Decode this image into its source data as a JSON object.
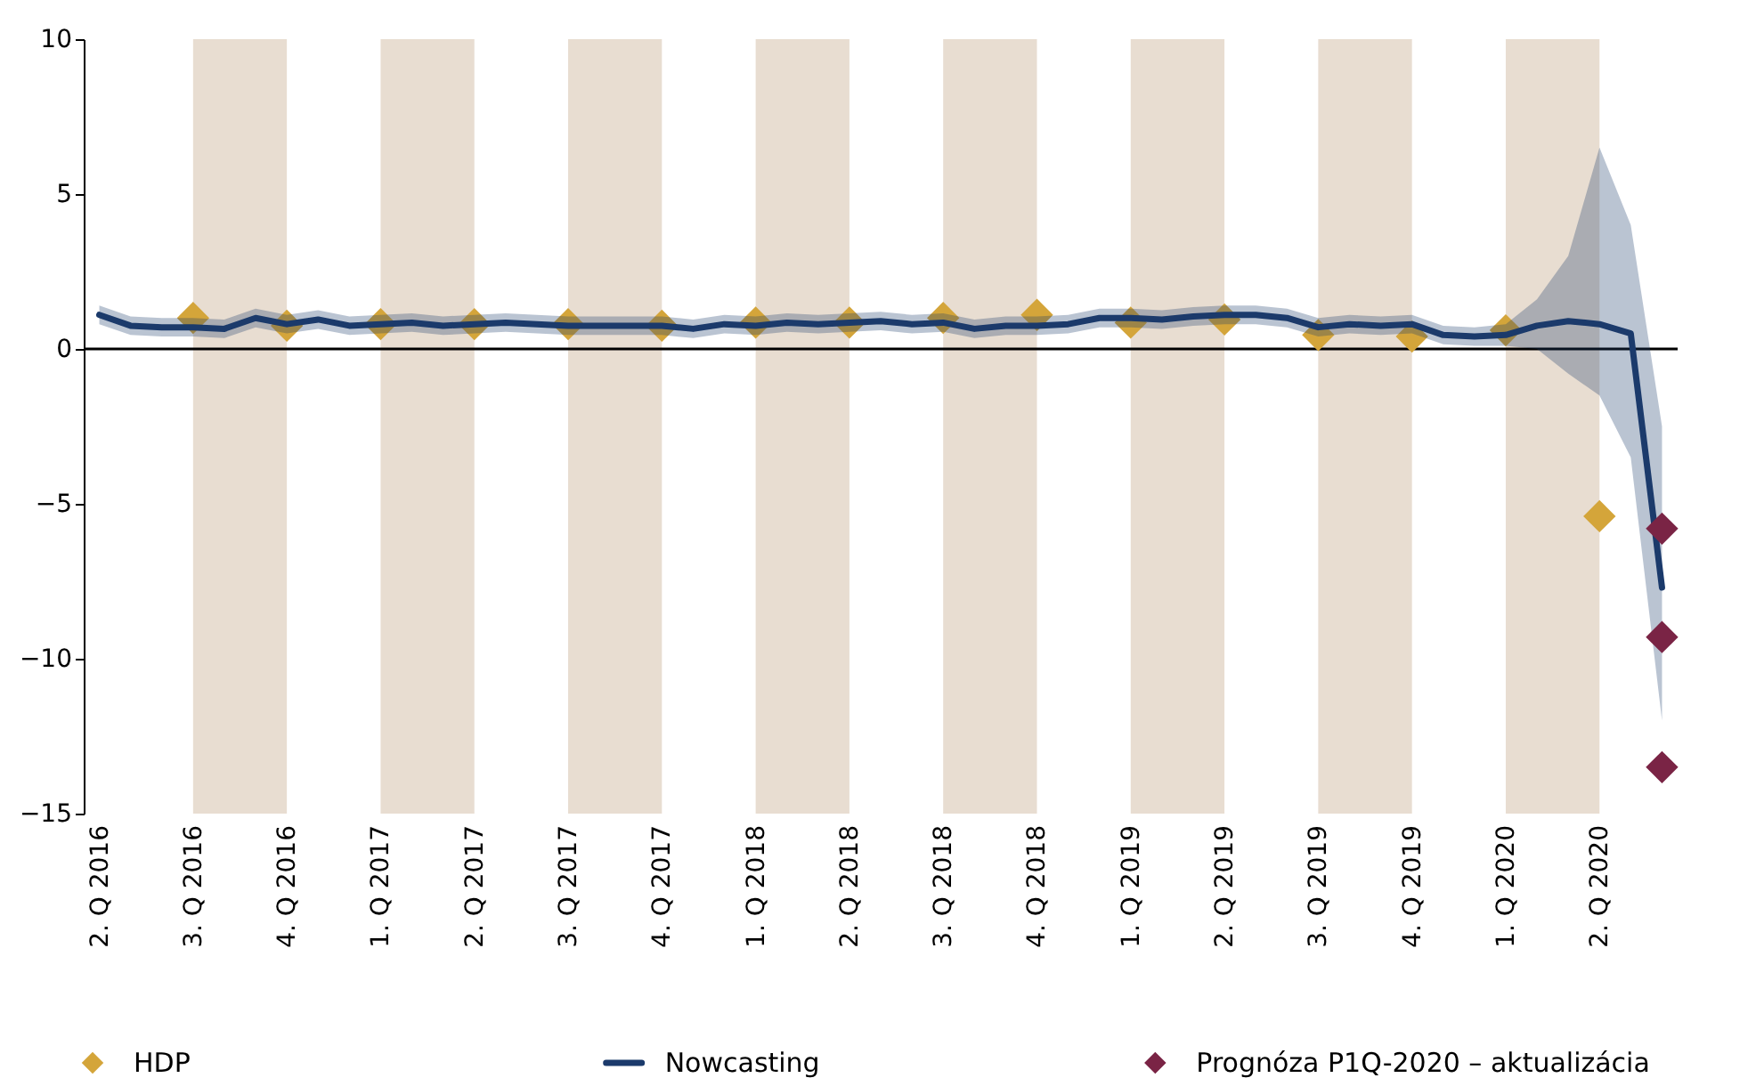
{
  "chart_data": {
    "type": "line",
    "categories": [
      "2. Q 2016",
      null,
      null,
      "3. Q 2016",
      null,
      null,
      "4. Q 2016",
      null,
      null,
      "1. Q 2017",
      null,
      null,
      "2. Q 2017",
      null,
      null,
      "3. Q 2017",
      null,
      null,
      "4. Q 2017",
      null,
      null,
      "1. Q 2018",
      null,
      null,
      "2. Q 2018",
      null,
      null,
      "3. Q 2018",
      null,
      null,
      "4. Q 2018",
      null,
      null,
      "1. Q 2019",
      null,
      null,
      "2. Q 2019",
      null,
      null,
      "3. Q 2019",
      null,
      null,
      "4. Q 2019",
      null,
      null,
      "1. Q 2020",
      null,
      null,
      "2. Q 2020",
      null,
      null
    ],
    "ylim": [
      -15,
      10
    ],
    "yticks": [
      -15,
      -10,
      -5,
      0,
      5,
      10
    ],
    "grid": false,
    "legend": "bottom",
    "ref_lines": [
      {
        "axis": "y",
        "value": 0,
        "color": "#000000"
      }
    ],
    "bands": [
      {
        "axis": "x",
        "from": "3. Q 2016",
        "to": "4. Q 2016",
        "color": "#e8ddd1"
      },
      {
        "axis": "x",
        "from": "1. Q 2017",
        "to": "2. Q 2017",
        "color": "#e8ddd1"
      },
      {
        "axis": "x",
        "from": "3. Q 2017",
        "to": "4. Q 2017",
        "color": "#e8ddd1"
      },
      {
        "axis": "x",
        "from": "1. Q 2018",
        "to": "2. Q 2018",
        "color": "#e8ddd1"
      },
      {
        "axis": "x",
        "from": "3. Q 2018",
        "to": "4. Q 2018",
        "color": "#e8ddd1"
      },
      {
        "axis": "x",
        "from": "1. Q 2019",
        "to": "2. Q 2019",
        "color": "#e8ddd1"
      },
      {
        "axis": "x",
        "from": "3. Q 2019",
        "to": "4. Q 2019",
        "color": "#e8ddd1"
      },
      {
        "axis": "x",
        "from": "1. Q 2020",
        "to": "2. Q 2020",
        "color": "#e8ddd1"
      }
    ],
    "series": [
      {
        "name": "HDP",
        "type": "scatter",
        "marker": "diamond",
        "color": "#d4a53a",
        "values": [
          null,
          null,
          null,
          1.0,
          null,
          null,
          0.75,
          null,
          null,
          0.8,
          null,
          null,
          0.8,
          null,
          null,
          0.8,
          null,
          null,
          0.75,
          null,
          null,
          0.85,
          null,
          null,
          0.85,
          null,
          null,
          1.0,
          null,
          null,
          1.1,
          null,
          null,
          0.85,
          null,
          null,
          0.95,
          null,
          null,
          0.45,
          null,
          null,
          0.4,
          null,
          null,
          0.6,
          null,
          null,
          -5.4,
          null,
          null
        ]
      },
      {
        "name": "Nowcasting",
        "line_style": "solid",
        "color": "#1b3a6b",
        "values": [
          1.1,
          0.75,
          0.7,
          0.7,
          0.65,
          1.0,
          0.8,
          0.95,
          0.75,
          0.8,
          0.85,
          0.75,
          0.8,
          0.85,
          0.8,
          0.75,
          0.75,
          0.75,
          0.75,
          0.65,
          0.8,
          0.75,
          0.85,
          0.8,
          0.85,
          0.9,
          0.8,
          0.85,
          0.65,
          0.75,
          0.75,
          0.8,
          1.0,
          1.0,
          0.95,
          1.05,
          1.1,
          1.1,
          1.0,
          0.7,
          0.8,
          0.75,
          0.8,
          0.45,
          0.4,
          0.45,
          0.75,
          0.9,
          0.8,
          0.5,
          -7.7
        ],
        "lower": [
          0.8,
          0.45,
          0.4,
          0.4,
          0.35,
          0.7,
          0.5,
          0.65,
          0.45,
          0.5,
          0.55,
          0.45,
          0.5,
          0.55,
          0.5,
          0.45,
          0.45,
          0.45,
          0.45,
          0.35,
          0.5,
          0.45,
          0.55,
          0.5,
          0.55,
          0.6,
          0.5,
          0.55,
          0.35,
          0.45,
          0.45,
          0.5,
          0.7,
          0.7,
          0.65,
          0.75,
          0.8,
          0.8,
          0.7,
          0.4,
          0.5,
          0.45,
          0.5,
          0.15,
          0.1,
          0.1,
          0.0,
          -0.8,
          -1.5,
          -3.5,
          -12.0
        ],
        "upper": [
          1.4,
          1.05,
          1.0,
          1.0,
          0.95,
          1.3,
          1.1,
          1.25,
          1.05,
          1.1,
          1.15,
          1.05,
          1.1,
          1.15,
          1.1,
          1.05,
          1.05,
          1.05,
          1.05,
          0.95,
          1.1,
          1.05,
          1.15,
          1.1,
          1.15,
          1.2,
          1.1,
          1.15,
          0.95,
          1.05,
          1.05,
          1.1,
          1.3,
          1.3,
          1.25,
          1.35,
          1.4,
          1.4,
          1.3,
          1.0,
          1.1,
          1.05,
          1.1,
          0.75,
          0.7,
          0.8,
          1.6,
          3.0,
          6.5,
          4.0,
          -2.5
        ]
      },
      {
        "name": "Prognóza P1Q-2020 – aktualizácia",
        "type": "scatter",
        "marker": "diamond",
        "color": "#7a2445",
        "values": [
          null,
          null,
          null,
          null,
          null,
          null,
          null,
          null,
          null,
          null,
          null,
          null,
          null,
          null,
          null,
          null,
          null,
          null,
          null,
          null,
          null,
          null,
          null,
          null,
          null,
          null,
          null,
          null,
          null,
          null,
          null,
          null,
          null,
          null,
          null,
          null,
          null,
          null,
          null,
          null,
          null,
          null,
          null,
          null,
          null,
          null,
          null,
          null,
          null,
          null,
          -5.8
        ]
      },
      {
        "type": "scatter",
        "marker": "diamond",
        "color": "#7a2445",
        "values": [
          null,
          null,
          null,
          null,
          null,
          null,
          null,
          null,
          null,
          null,
          null,
          null,
          null,
          null,
          null,
          null,
          null,
          null,
          null,
          null,
          null,
          null,
          null,
          null,
          null,
          null,
          null,
          null,
          null,
          null,
          null,
          null,
          null,
          null,
          null,
          null,
          null,
          null,
          null,
          null,
          null,
          null,
          null,
          null,
          null,
          null,
          null,
          null,
          null,
          null,
          -9.3
        ]
      },
      {
        "type": "scatter",
        "marker": "diamond",
        "color": "#7a2445",
        "values": [
          null,
          null,
          null,
          null,
          null,
          null,
          null,
          null,
          null,
          null,
          null,
          null,
          null,
          null,
          null,
          null,
          null,
          null,
          null,
          null,
          null,
          null,
          null,
          null,
          null,
          null,
          null,
          null,
          null,
          null,
          null,
          null,
          null,
          null,
          null,
          null,
          null,
          null,
          null,
          null,
          null,
          null,
          null,
          null,
          null,
          null,
          null,
          null,
          null,
          null,
          -13.5
        ]
      }
    ]
  }
}
